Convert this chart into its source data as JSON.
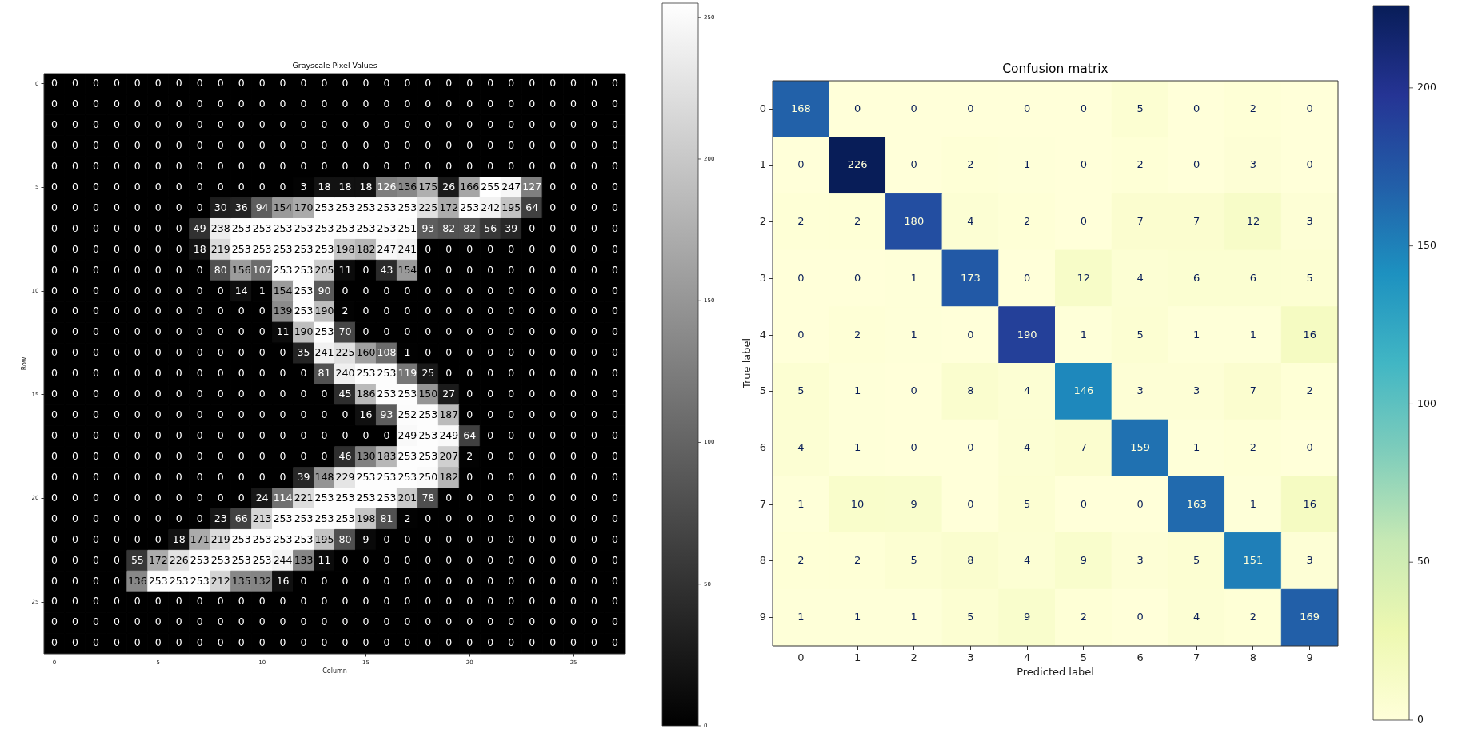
{
  "chart_data": [
    {
      "type": "heatmap",
      "title": "Grayscale Pixel Values",
      "xlabel": "Column",
      "ylabel": "Row",
      "categories": [
        "0",
        null,
        null,
        null,
        null,
        "5",
        null,
        null,
        null,
        null,
        "10",
        null,
        null,
        null,
        null,
        "15",
        null,
        null,
        null,
        null,
        "20",
        null,
        null,
        null,
        null,
        "25",
        null,
        null
      ],
      "y_categories": [
        "0",
        null,
        null,
        null,
        null,
        "5",
        null,
        null,
        null,
        null,
        "10",
        null,
        null,
        null,
        null,
        "15",
        null,
        null,
        null,
        null,
        "20",
        null,
        null,
        null,
        null,
        "25",
        null,
        null
      ],
      "cells": [
        [
          0,
          0,
          0,
          0,
          0,
          0,
          0,
          0,
          0,
          0,
          0,
          0,
          0,
          0,
          0,
          0,
          0,
          0,
          0,
          0,
          0,
          0,
          0,
          0,
          0,
          0,
          0,
          0
        ],
        [
          0,
          0,
          0,
          0,
          0,
          0,
          0,
          0,
          0,
          0,
          0,
          0,
          0,
          0,
          0,
          0,
          0,
          0,
          0,
          0,
          0,
          0,
          0,
          0,
          0,
          0,
          0,
          0
        ],
        [
          0,
          0,
          0,
          0,
          0,
          0,
          0,
          0,
          0,
          0,
          0,
          0,
          0,
          0,
          0,
          0,
          0,
          0,
          0,
          0,
          0,
          0,
          0,
          0,
          0,
          0,
          0,
          0
        ],
        [
          0,
          0,
          0,
          0,
          0,
          0,
          0,
          0,
          0,
          0,
          0,
          0,
          0,
          0,
          0,
          0,
          0,
          0,
          0,
          0,
          0,
          0,
          0,
          0,
          0,
          0,
          0,
          0
        ],
        [
          0,
          0,
          0,
          0,
          0,
          0,
          0,
          0,
          0,
          0,
          0,
          0,
          0,
          0,
          0,
          0,
          0,
          0,
          0,
          0,
          0,
          0,
          0,
          0,
          0,
          0,
          0,
          0
        ],
        [
          0,
          0,
          0,
          0,
          0,
          0,
          0,
          0,
          0,
          0,
          0,
          0,
          3,
          18,
          18,
          18,
          126,
          136,
          175,
          26,
          166,
          255,
          247,
          127,
          0,
          0,
          0,
          0
        ],
        [
          0,
          0,
          0,
          0,
          0,
          0,
          0,
          0,
          30,
          36,
          94,
          154,
          170,
          253,
          253,
          253,
          253,
          253,
          225,
          172,
          253,
          242,
          195,
          64,
          0,
          0,
          0,
          0
        ],
        [
          0,
          0,
          0,
          0,
          0,
          0,
          0,
          49,
          238,
          253,
          253,
          253,
          253,
          253,
          253,
          253,
          253,
          251,
          93,
          82,
          82,
          56,
          39,
          0,
          0,
          0,
          0,
          0
        ],
        [
          0,
          0,
          0,
          0,
          0,
          0,
          0,
          18,
          219,
          253,
          253,
          253,
          253,
          253,
          198,
          182,
          247,
          241,
          0,
          0,
          0,
          0,
          0,
          0,
          0,
          0,
          0,
          0
        ],
        [
          0,
          0,
          0,
          0,
          0,
          0,
          0,
          0,
          80,
          156,
          107,
          253,
          253,
          205,
          11,
          0,
          43,
          154,
          0,
          0,
          0,
          0,
          0,
          0,
          0,
          0,
          0,
          0
        ],
        [
          0,
          0,
          0,
          0,
          0,
          0,
          0,
          0,
          0,
          14,
          1,
          154,
          253,
          90,
          0,
          0,
          0,
          0,
          0,
          0,
          0,
          0,
          0,
          0,
          0,
          0,
          0,
          0
        ],
        [
          0,
          0,
          0,
          0,
          0,
          0,
          0,
          0,
          0,
          0,
          0,
          139,
          253,
          190,
          2,
          0,
          0,
          0,
          0,
          0,
          0,
          0,
          0,
          0,
          0,
          0,
          0,
          0
        ],
        [
          0,
          0,
          0,
          0,
          0,
          0,
          0,
          0,
          0,
          0,
          0,
          11,
          190,
          253,
          70,
          0,
          0,
          0,
          0,
          0,
          0,
          0,
          0,
          0,
          0,
          0,
          0,
          0
        ],
        [
          0,
          0,
          0,
          0,
          0,
          0,
          0,
          0,
          0,
          0,
          0,
          0,
          35,
          241,
          225,
          160,
          108,
          1,
          0,
          0,
          0,
          0,
          0,
          0,
          0,
          0,
          0,
          0
        ],
        [
          0,
          0,
          0,
          0,
          0,
          0,
          0,
          0,
          0,
          0,
          0,
          0,
          0,
          81,
          240,
          253,
          253,
          119,
          25,
          0,
          0,
          0,
          0,
          0,
          0,
          0,
          0,
          0
        ],
        [
          0,
          0,
          0,
          0,
          0,
          0,
          0,
          0,
          0,
          0,
          0,
          0,
          0,
          0,
          45,
          186,
          253,
          253,
          150,
          27,
          0,
          0,
          0,
          0,
          0,
          0,
          0,
          0
        ],
        [
          0,
          0,
          0,
          0,
          0,
          0,
          0,
          0,
          0,
          0,
          0,
          0,
          0,
          0,
          0,
          16,
          93,
          252,
          253,
          187,
          0,
          0,
          0,
          0,
          0,
          0,
          0,
          0
        ],
        [
          0,
          0,
          0,
          0,
          0,
          0,
          0,
          0,
          0,
          0,
          0,
          0,
          0,
          0,
          0,
          0,
          0,
          249,
          253,
          249,
          64,
          0,
          0,
          0,
          0,
          0,
          0,
          0
        ],
        [
          0,
          0,
          0,
          0,
          0,
          0,
          0,
          0,
          0,
          0,
          0,
          0,
          0,
          0,
          46,
          130,
          183,
          253,
          253,
          207,
          2,
          0,
          0,
          0,
          0,
          0,
          0,
          0
        ],
        [
          0,
          0,
          0,
          0,
          0,
          0,
          0,
          0,
          0,
          0,
          0,
          0,
          39,
          148,
          229,
          253,
          253,
          253,
          250,
          182,
          0,
          0,
          0,
          0,
          0,
          0,
          0,
          0
        ],
        [
          0,
          0,
          0,
          0,
          0,
          0,
          0,
          0,
          0,
          0,
          24,
          114,
          221,
          253,
          253,
          253,
          253,
          201,
          78,
          0,
          0,
          0,
          0,
          0,
          0,
          0,
          0,
          0
        ],
        [
          0,
          0,
          0,
          0,
          0,
          0,
          0,
          0,
          23,
          66,
          213,
          253,
          253,
          253,
          253,
          198,
          81,
          2,
          0,
          0,
          0,
          0,
          0,
          0,
          0,
          0,
          0,
          0
        ],
        [
          0,
          0,
          0,
          0,
          0,
          0,
          18,
          171,
          219,
          253,
          253,
          253,
          253,
          195,
          80,
          9,
          0,
          0,
          0,
          0,
          0,
          0,
          0,
          0,
          0,
          0,
          0,
          0
        ],
        [
          0,
          0,
          0,
          0,
          55,
          172,
          226,
          253,
          253,
          253,
          253,
          244,
          133,
          11,
          0,
          0,
          0,
          0,
          0,
          0,
          0,
          0,
          0,
          0,
          0,
          0,
          0,
          0
        ],
        [
          0,
          0,
          0,
          0,
          136,
          253,
          253,
          253,
          212,
          135,
          132,
          16,
          0,
          0,
          0,
          0,
          0,
          0,
          0,
          0,
          0,
          0,
          0,
          0,
          0,
          0,
          0,
          0
        ],
        [
          0,
          0,
          0,
          0,
          0,
          0,
          0,
          0,
          0,
          0,
          0,
          0,
          0,
          0,
          0,
          0,
          0,
          0,
          0,
          0,
          0,
          0,
          0,
          0,
          0,
          0,
          0,
          0
        ],
        [
          0,
          0,
          0,
          0,
          0,
          0,
          0,
          0,
          0,
          0,
          0,
          0,
          0,
          0,
          0,
          0,
          0,
          0,
          0,
          0,
          0,
          0,
          0,
          0,
          0,
          0,
          0,
          0
        ],
        [
          0,
          0,
          0,
          0,
          0,
          0,
          0,
          0,
          0,
          0,
          0,
          0,
          0,
          0,
          0,
          0,
          0,
          0,
          0,
          0,
          0,
          0,
          0,
          0,
          0,
          0,
          0,
          0
        ]
      ],
      "clim": [
        0,
        255
      ],
      "cticks": [
        0,
        50,
        100,
        150,
        200,
        250
      ],
      "data_labels": true
    },
    {
      "type": "heatmap",
      "title": "Confusion matrix",
      "xlabel": "Predicted label",
      "ylabel": "True label",
      "categories": [
        "0",
        "1",
        "2",
        "3",
        "4",
        "5",
        "6",
        "7",
        "8",
        "9"
      ],
      "y_categories": [
        "0",
        "1",
        "2",
        "3",
        "4",
        "5",
        "6",
        "7",
        "8",
        "9"
      ],
      "cells": [
        [
          168,
          0,
          0,
          0,
          0,
          0,
          5,
          0,
          2,
          0
        ],
        [
          0,
          226,
          0,
          2,
          1,
          0,
          2,
          0,
          3,
          0
        ],
        [
          2,
          2,
          180,
          4,
          2,
          0,
          7,
          7,
          12,
          3
        ],
        [
          0,
          0,
          1,
          173,
          0,
          12,
          4,
          6,
          6,
          5
        ],
        [
          0,
          2,
          1,
          0,
          190,
          1,
          5,
          1,
          1,
          16
        ],
        [
          5,
          1,
          0,
          8,
          4,
          146,
          3,
          3,
          7,
          2
        ],
        [
          4,
          1,
          0,
          0,
          4,
          7,
          159,
          1,
          2,
          0
        ],
        [
          1,
          10,
          9,
          0,
          5,
          0,
          0,
          163,
          1,
          16
        ],
        [
          2,
          2,
          5,
          8,
          4,
          9,
          3,
          5,
          151,
          3
        ],
        [
          1,
          1,
          1,
          5,
          9,
          2,
          0,
          4,
          2,
          169
        ]
      ],
      "clim": [
        0,
        226
      ],
      "cticks": [
        0,
        50,
        100,
        150,
        200
      ],
      "data_labels": true
    }
  ]
}
